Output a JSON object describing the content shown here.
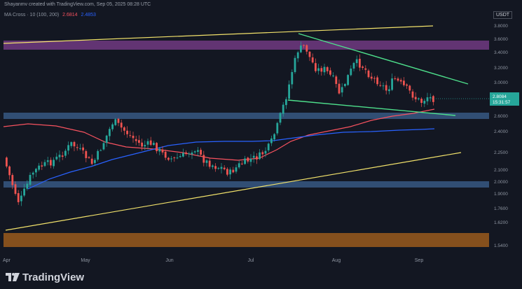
{
  "header": {
    "caption": "Shayanmv created with TradingView.com, Sep 05, 2025 08:28 UTC"
  },
  "indicator": {
    "label": "MA Cross · 10 (100, 200)",
    "value_fast": "2.6814",
    "value_slow": "2.4853"
  },
  "currency": "USDT",
  "price_axis": {
    "labels": [
      "3.8000",
      "3.6000",
      "3.4000",
      "3.2000",
      "3.0000",
      "2.6000",
      "2.4000",
      "2.2500",
      "2.1000",
      "2.0000",
      "1.9000",
      "1.7600",
      "1.6200",
      "1.5400"
    ]
  },
  "current_price": {
    "price": "2.8084",
    "countdown": "15:31:57"
  },
  "time_axis": {
    "labels": [
      "Apr",
      "May",
      "Jun",
      "Jul",
      "Aug",
      "Sep"
    ]
  },
  "footer": {
    "brand": "TradingView"
  },
  "colors": {
    "background": "#131722",
    "up_candle": "#26a69a",
    "down_candle": "#ef5350",
    "ma_fast": "#f7525f",
    "ma_slow": "#2962ff",
    "channel_line": "#f2e26b",
    "wedge_line": "#4ee08c",
    "supply_zone": "#7e3f8f",
    "support_zone": "#3a5c8a",
    "demand_zone": "#9a5a1c",
    "current_price": "#26a69a"
  }
}
